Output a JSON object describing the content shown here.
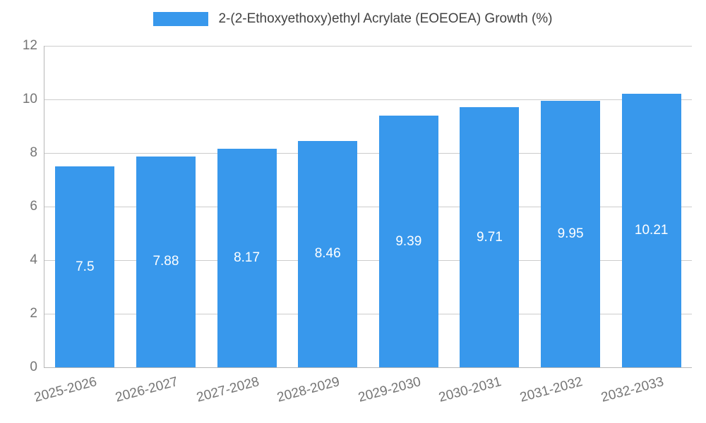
{
  "legend": {
    "label": "2-(2-Ethoxyethoxy)ethyl Acrylate (EOEOEA) Growth (%)"
  },
  "chart_data": {
    "type": "bar",
    "title": "2-(2-Ethoxyethoxy)ethyl Acrylate (EOEOEA) Growth (%)",
    "categories": [
      "2025-2026",
      "2026-2027",
      "2027-2028",
      "2028-2029",
      "2029-2030",
      "2030-2031",
      "2031-2032",
      "2032-2033"
    ],
    "values": [
      7.5,
      7.88,
      8.17,
      8.46,
      9.39,
      9.71,
      9.95,
      10.21
    ],
    "value_labels": [
      "7.5",
      "7.88",
      "8.17",
      "8.46",
      "9.39",
      "9.71",
      "9.95",
      "10.21"
    ],
    "xlabel": "",
    "ylabel": "",
    "ylim": [
      0,
      12
    ],
    "yticks": [
      0,
      2,
      4,
      6,
      8,
      10,
      12
    ],
    "grid": true,
    "legend_position": "top",
    "colors": {
      "bar": "#3898ec",
      "value_label": "#ffffff",
      "axis_text": "#757575",
      "title_text": "#424242",
      "gridline": "#cccccc",
      "axis_line": "#b7b7b7",
      "background": "#ffffff"
    }
  }
}
